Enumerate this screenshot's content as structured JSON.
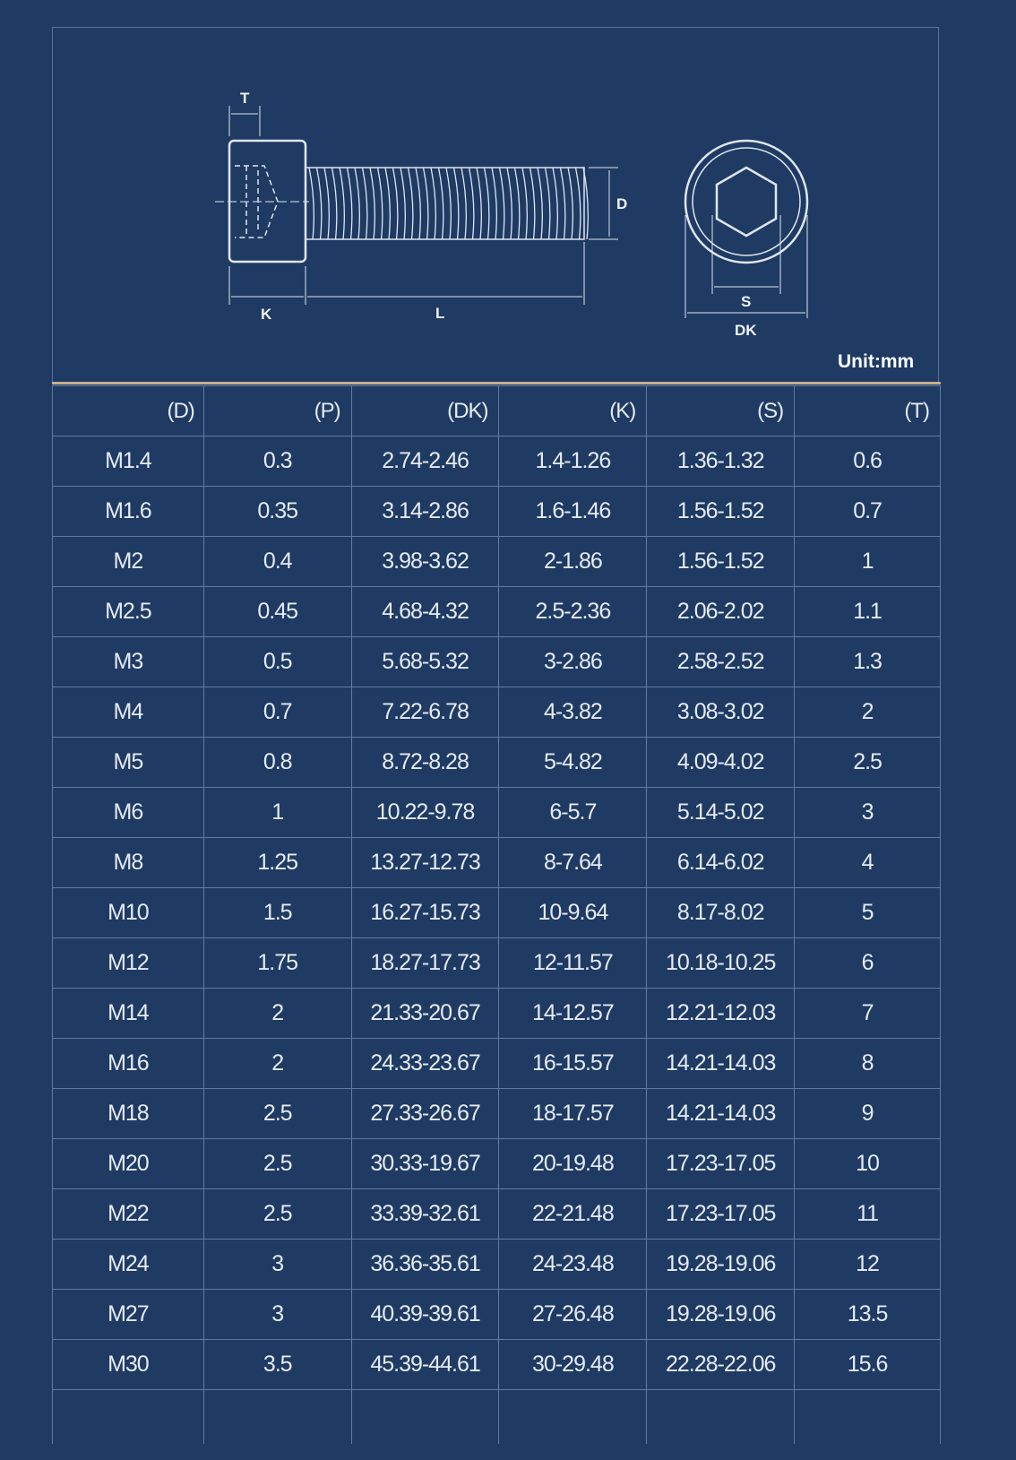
{
  "diagram": {
    "labels": {
      "t": "T",
      "d": "D",
      "k": "K",
      "l": "L",
      "s": "S",
      "dk": "DK"
    },
    "unit": "Unit:mm"
  },
  "colors": {
    "background": "#1f3b64",
    "grid": "#5f7ba2",
    "accent_line": "#c9b08a"
  },
  "table": {
    "headers": [
      "(D)",
      "(P)",
      "(DK)",
      "(K)",
      "(S)",
      "(T)"
    ],
    "rows": [
      [
        "M1.4",
        "0.3",
        "2.74-2.46",
        "1.4-1.26",
        "1.36-1.32",
        "0.6"
      ],
      [
        "M1.6",
        "0.35",
        "3.14-2.86",
        "1.6-1.46",
        "1.56-1.52",
        "0.7"
      ],
      [
        "M2",
        "0.4",
        "3.98-3.62",
        "2-1.86",
        "1.56-1.52",
        "1"
      ],
      [
        "M2.5",
        "0.45",
        "4.68-4.32",
        "2.5-2.36",
        "2.06-2.02",
        "1.1"
      ],
      [
        "M3",
        "0.5",
        "5.68-5.32",
        "3-2.86",
        "2.58-2.52",
        "1.3"
      ],
      [
        "M4",
        "0.7",
        "7.22-6.78",
        "4-3.82",
        "3.08-3.02",
        "2"
      ],
      [
        "M5",
        "0.8",
        "8.72-8.28",
        "5-4.82",
        "4.09-4.02",
        "2.5"
      ],
      [
        "M6",
        "1",
        "10.22-9.78",
        "6-5.7",
        "5.14-5.02",
        "3"
      ],
      [
        "M8",
        "1.25",
        "13.27-12.73",
        "8-7.64",
        "6.14-6.02",
        "4"
      ],
      [
        "M10",
        "1.5",
        "16.27-15.73",
        "10-9.64",
        "8.17-8.02",
        "5"
      ],
      [
        "M12",
        "1.75",
        "18.27-17.73",
        "12-11.57",
        "10.18-10.25",
        "6"
      ],
      [
        "M14",
        "2",
        "21.33-20.67",
        "14-12.57",
        "12.21-12.03",
        "7"
      ],
      [
        "M16",
        "2",
        "24.33-23.67",
        "16-15.57",
        "14.21-14.03",
        "8"
      ],
      [
        "M18",
        "2.5",
        "27.33-26.67",
        "18-17.57",
        "14.21-14.03",
        "9"
      ],
      [
        "M20",
        "2.5",
        "30.33-19.67",
        "20-19.48",
        "17.23-17.05",
        "10"
      ],
      [
        "M22",
        "2.5",
        "33.39-32.61",
        "22-21.48",
        "17.23-17.05",
        "11"
      ],
      [
        "M24",
        "3",
        "36.36-35.61",
        "24-23.48",
        "19.28-19.06",
        "12"
      ],
      [
        "M27",
        "3",
        "40.39-39.61",
        "27-26.48",
        "19.28-19.06",
        "13.5"
      ],
      [
        "M30",
        "3.5",
        "45.39-44.61",
        "30-29.48",
        "22.28-22.06",
        "15.6"
      ]
    ]
  }
}
